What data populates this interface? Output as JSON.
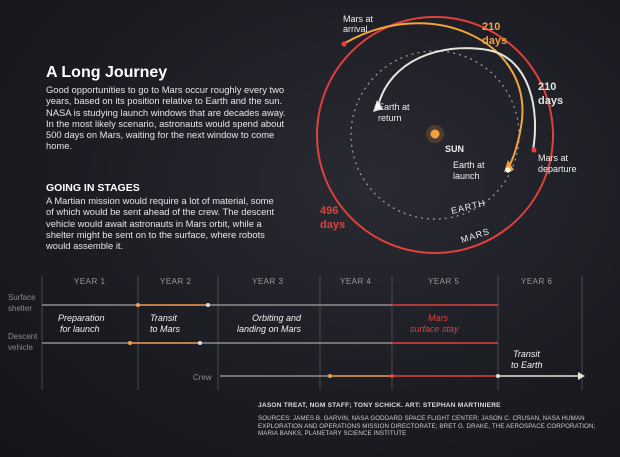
{
  "title": "A Long Journey",
  "intro": "Good opportunities to go to Mars occur roughly every two years, based on its position relative to Earth and the sun. NASA is studying launch windows that are decades away. In the most likely scenario, astronauts would spend about 500 days on Mars, waiting for the next window to come home.",
  "stages": {
    "heading": "GOING IN STAGES",
    "body": "A Martian mission would require a lot of material, some of which would be sent ahead of the crew. The descent vehicle would await astronauts in Mars orbit, while a shelter might be sent on to the surface, where robots would assemble it."
  },
  "orbit": {
    "sun": "SUN",
    "earth_orbit": "EARTH",
    "mars_orbit": "MARS",
    "mars_arrival": [
      "Mars at",
      "arrival"
    ],
    "earth_return": [
      "Earth at",
      "return"
    ],
    "earth_launch": [
      "Earth at",
      "launch"
    ],
    "mars_departure": [
      "Mars at",
      "departure"
    ],
    "days_outbound": [
      "210",
      "days"
    ],
    "days_return": [
      "210",
      "days"
    ],
    "days_stay": [
      "496",
      "days"
    ]
  },
  "timeline": {
    "years": [
      "YEAR 1",
      "YEAR 2",
      "YEAR 3",
      "YEAR 4",
      "YEAR 5",
      "YEAR 6"
    ],
    "rows": {
      "surface_shelter": [
        "Surface",
        "shelter"
      ],
      "descent_vehicle": [
        "Descent",
        "vehicle"
      ],
      "crew": "Crew"
    },
    "phases": {
      "preparation": [
        "Preparation",
        "for launch"
      ],
      "transit_out": [
        "Transit",
        "to Mars"
      ],
      "orbiting": [
        "Orbiting and",
        "landing on Mars"
      ],
      "surface_stay": [
        "Mars",
        "surface stay"
      ],
      "transit_back": [
        "Transit",
        "to Earth"
      ]
    }
  },
  "credit": "JASON TREAT, NGM STAFF; TONY SCHICK. ART: STEPHAN MARTINIERE",
  "sources": "SOURCES: JAMES B. GARVIN, NASA GODDARD SPACE FLIGHT CENTER; JASON C. CRUSAN, NASA HUMAN EXPLORATION AND OPERATIONS MISSION DIRECTORATE; BRET G. DRAKE, THE AEROSPACE CORPORATION; MARIA BANKS, PLANETARY SCIENCE INSTITUTE",
  "colors": {
    "mars": "#e0413a",
    "earth": "#dfe8df",
    "sun": "#f0a040",
    "days_gold": "#f2a33c",
    "timeline_gray": "#8f8f8f",
    "timeline_orange": "#f0a050",
    "timeline_red": "#e0413a"
  }
}
